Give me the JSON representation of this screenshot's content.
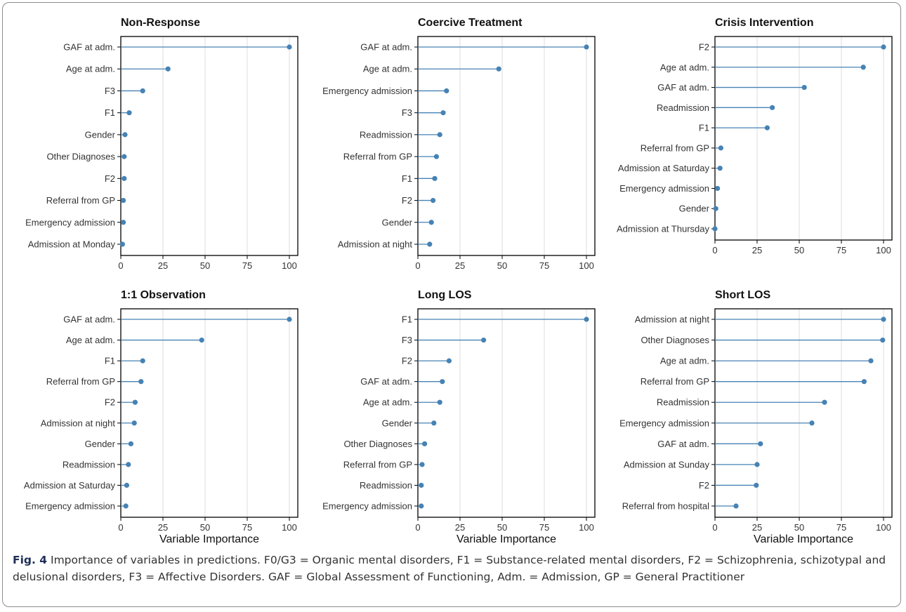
{
  "caption": {
    "label": "Fig. 4",
    "text": " Importance of variables in predictions. F0/G3 = Organic mental disorders, F1 = Substance-related mental disorders, F2 = Schizophrenia, schizotypal and delusional disorders, F3 = Affective Disorders. GAF = Global Assessment of Functioning, Adm. = Admission, GP = General Practitioner"
  },
  "colors": {
    "series": "#4682b4",
    "axis": "#000000",
    "grid": "#dcdcdc",
    "text": "#333333"
  },
  "chart_data": [
    {
      "type": "lollipop",
      "title": "Non-Response",
      "xlabel": "",
      "xlim": [
        0,
        105
      ],
      "xticks": [
        0,
        25,
        50,
        75,
        100
      ],
      "categories": [
        "GAF at adm.",
        "Age at adm.",
        "F3",
        "F1",
        "Gender",
        "Other Diagnoses",
        "F2",
        "Referral from GP",
        "Emergency admission",
        "Admission at Monday"
      ],
      "values": [
        100,
        28,
        13,
        5,
        2.5,
        2,
        2,
        1.5,
        1.5,
        1
      ]
    },
    {
      "type": "lollipop",
      "title": "Coercive Treatment",
      "xlabel": "",
      "xlim": [
        0,
        105
      ],
      "xticks": [
        0,
        25,
        50,
        75,
        100
      ],
      "categories": [
        "GAF at adm.",
        "Age at adm.",
        "Emergency admission",
        "F3",
        "Readmission",
        "Referral from GP",
        "F1",
        "F2",
        "Gender",
        "Admission at night"
      ],
      "values": [
        100,
        48,
        17,
        15,
        13,
        11,
        10,
        9,
        8,
        7
      ]
    },
    {
      "type": "lollipop",
      "title": "Crisis Intervention",
      "xlabel": "",
      "xlim": [
        0,
        105
      ],
      "xticks": [
        0,
        25,
        50,
        75,
        100
      ],
      "categories": [
        "F2",
        "Age at adm.",
        "GAF at adm.",
        "Readmission",
        "F1",
        "Referral from GP",
        "Admission at Saturday",
        "Emergency admission",
        "Gender",
        "Admission at Thursday"
      ],
      "values": [
        100,
        88,
        53,
        34,
        31,
        3.5,
        3,
        1.5,
        0.5,
        0
      ]
    },
    {
      "type": "lollipop",
      "title": "1:1 Observation",
      "xlabel": "Variable Importance",
      "xlim": [
        0,
        105
      ],
      "xticks": [
        0,
        25,
        50,
        75,
        100
      ],
      "categories": [
        "GAF at adm.",
        "Age at adm.",
        "F1",
        "Referral from GP",
        "F2",
        "Admission at night",
        "Gender",
        "Readmission",
        "Admission at Saturday",
        "Emergency admission"
      ],
      "values": [
        100,
        48,
        13,
        12,
        8.5,
        8,
        6,
        4.5,
        3.5,
        3
      ]
    },
    {
      "type": "lollipop",
      "title": "Long LOS",
      "xlabel": "Variable Importance",
      "xlim": [
        0,
        105
      ],
      "xticks": [
        0,
        25,
        50,
        75,
        100
      ],
      "categories": [
        "F1",
        "F3",
        "F2",
        "GAF at adm.",
        "Age at adm.",
        "Gender",
        "Other Diagnoses",
        "Referral from GP",
        "Readmission",
        "Emergency admission"
      ],
      "values": [
        100,
        39,
        18.5,
        14.5,
        13,
        9.5,
        4,
        2.5,
        2,
        2
      ]
    },
    {
      "type": "lollipop",
      "title": "Short LOS",
      "xlabel": "Variable Importance",
      "xlim": [
        0,
        105
      ],
      "xticks": [
        0,
        25,
        50,
        75,
        100
      ],
      "categories": [
        "Admission at night",
        "Other Diagnoses",
        "Age at adm.",
        "Referral from GP",
        "Readmission",
        "Emergency admission",
        "GAF at adm.",
        "Admission at Sunday",
        "F2",
        "Referral from hospital"
      ],
      "values": [
        100,
        99.5,
        92.5,
        88.5,
        65,
        57.5,
        27,
        25,
        24.5,
        12.5
      ]
    }
  ]
}
